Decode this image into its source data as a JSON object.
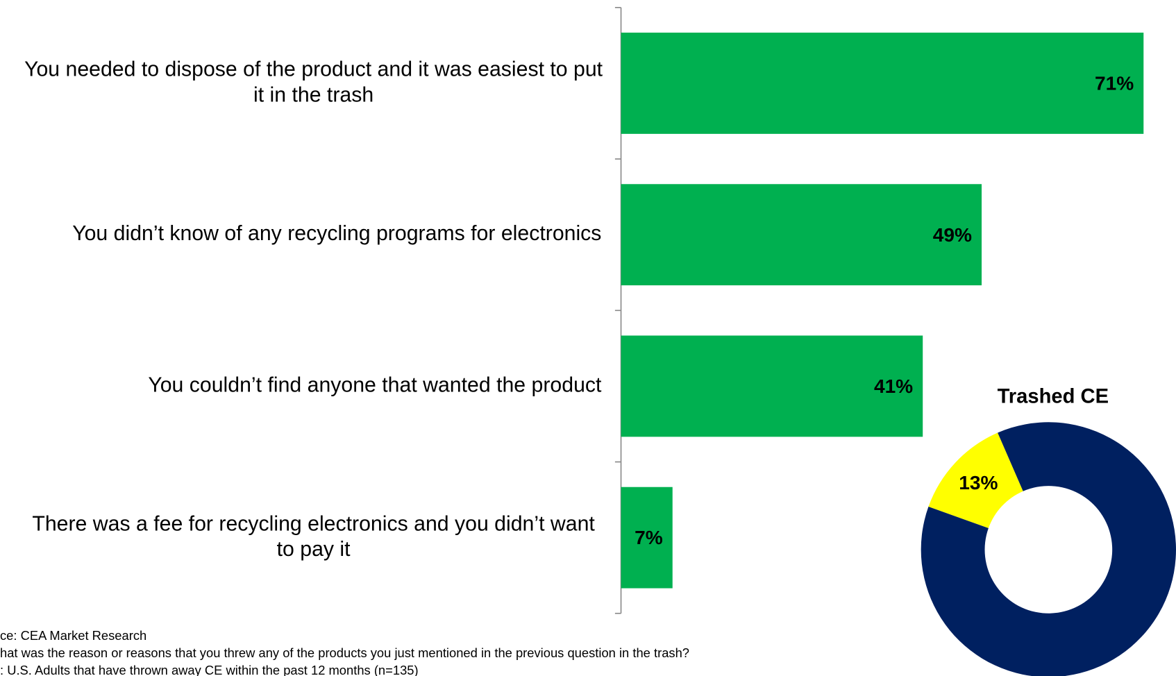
{
  "chart_data": [
    {
      "type": "barh",
      "categories": [
        "You needed to dispose of the product and it was easiest to put it in the trash",
        "You didn’t know of any recycling programs for electronics",
        "You couldn’t find anyone that wanted the product",
        "There was a fee for recycling electronics and you didn’t want to pay it"
      ],
      "values": [
        71,
        49,
        41,
        7
      ],
      "value_labels": [
        "71%",
        "49%",
        "41%",
        "7%"
      ],
      "color": "#00b050",
      "xlim": [
        0,
        75
      ]
    },
    {
      "type": "donut",
      "title": "Trashed CE",
      "categories": [
        null,
        null
      ],
      "values": [
        13,
        87
      ],
      "value_labels": [
        "13%",
        null
      ],
      "colors": [
        "#ffff00",
        "#002060"
      ]
    }
  ],
  "notes": [
    "ce: CEA Market Research",
    "hat was the reason or reasons that you threw any of the products you just mentioned in the previous question in the trash?",
    ": U.S. Adults that have thrown away CE within the past 12 months (n=135)"
  ]
}
